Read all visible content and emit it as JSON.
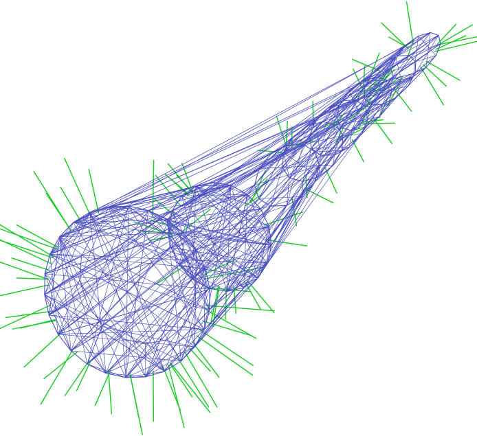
{
  "figure": {
    "subject": "mesh wireframe",
    "mesh_color": "#4a4fbf",
    "normal_color": "#1fcc2a",
    "background": "#ffffff"
  },
  "mesh": {
    "large_ring_points": 26,
    "mid_ring_points": 18,
    "small_ring_points": 12,
    "neck_rings": 6,
    "interior_cross_edges": 180
  },
  "normals": {
    "count_large": 46,
    "count_mid": 22,
    "count_neck": 30,
    "count_small": 16
  }
}
